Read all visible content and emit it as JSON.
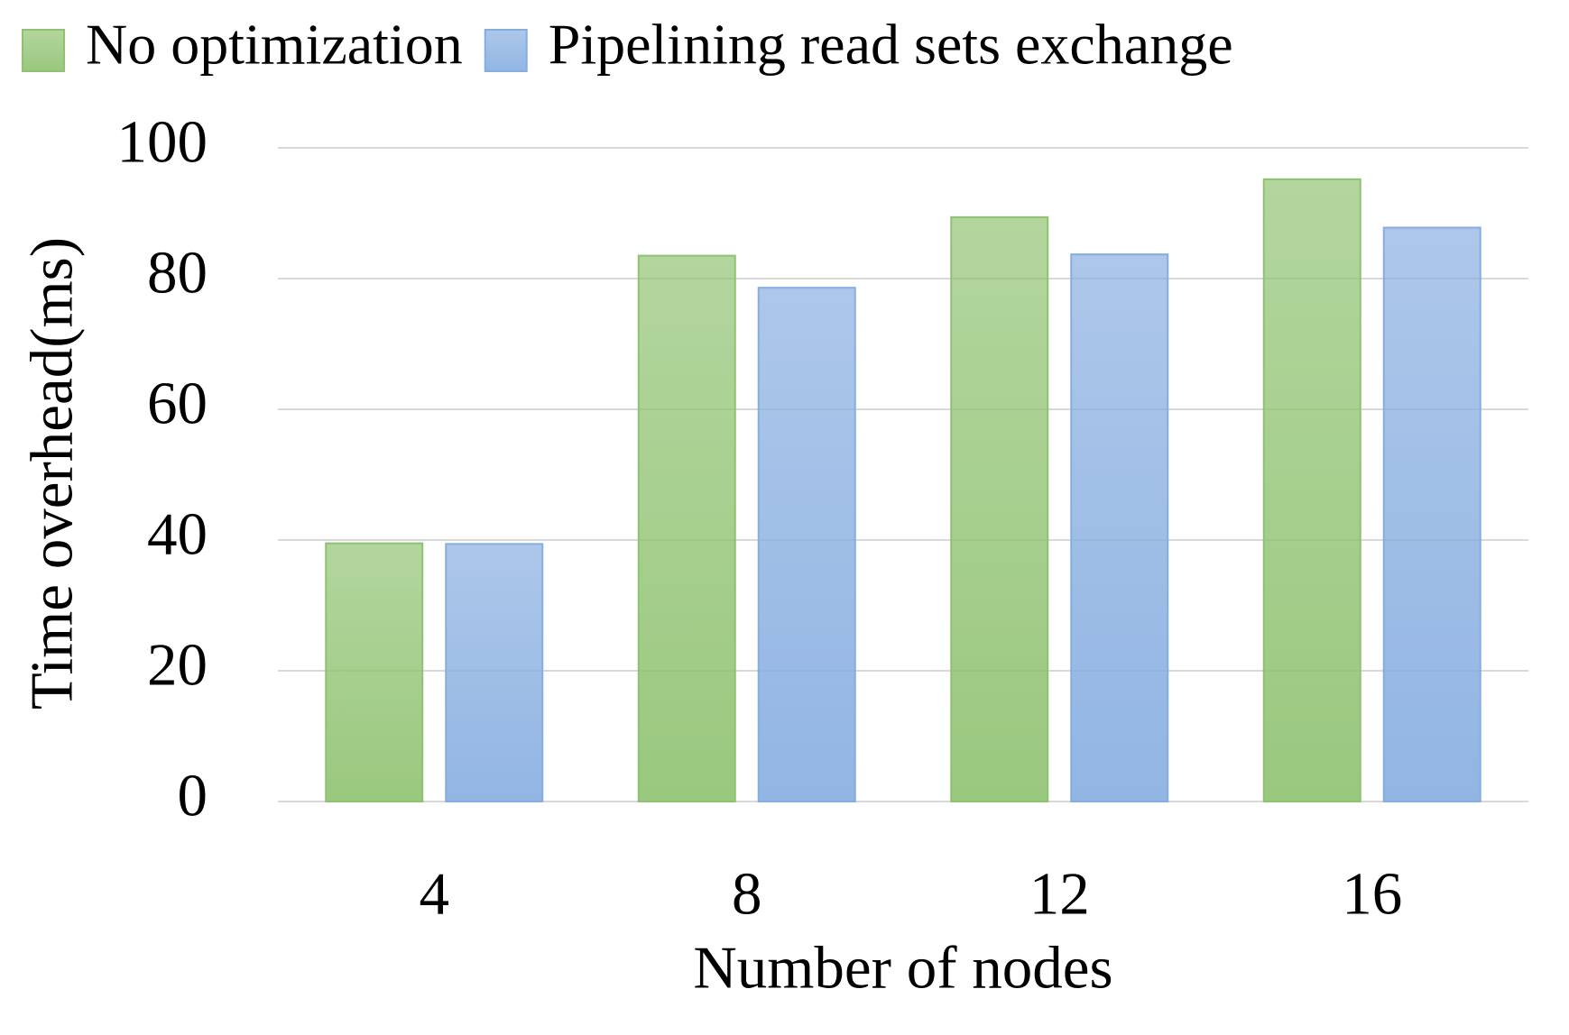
{
  "chart_data": {
    "type": "bar",
    "categories": [
      "4",
      "8",
      "12",
      "16"
    ],
    "series": [
      {
        "name": "No optimization",
        "color": "#8fc270",
        "values": [
          39.5,
          83.5,
          89.4,
          95.2
        ]
      },
      {
        "name": "Pipelining read sets exchange",
        "color": "#86ade0",
        "values": [
          39.4,
          78.6,
          83.7,
          87.8
        ]
      }
    ],
    "xlabel": "Number of nodes",
    "ylabel": "Time overhead(ms)",
    "ylim": [
      0,
      100
    ],
    "yticks": [
      0,
      20,
      40,
      60,
      80,
      100
    ],
    "grid": true,
    "legend": "top"
  }
}
